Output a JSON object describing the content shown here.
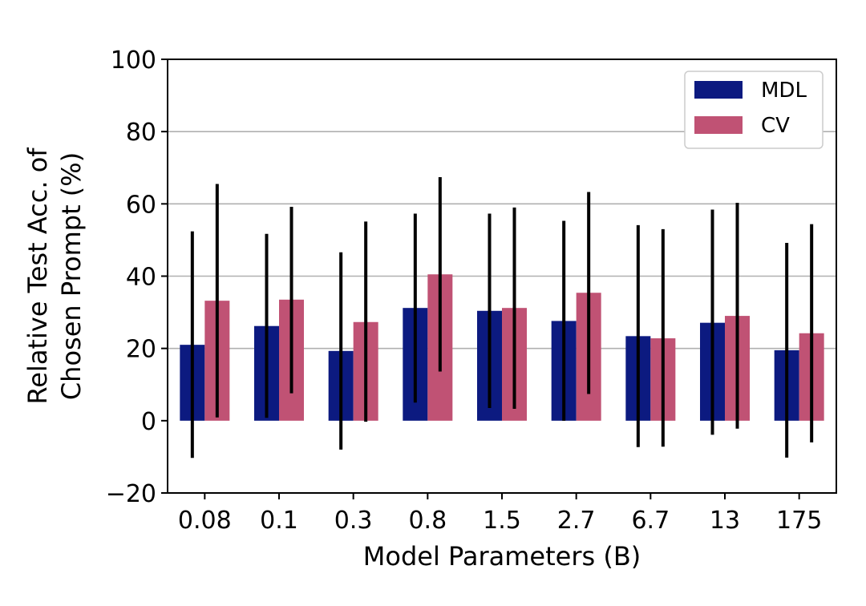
{
  "chart_data": {
    "type": "bar",
    "title": "",
    "xlabel": "Model Parameters (B)",
    "ylabel_lines": [
      "Relative Test Acc. of",
      "Chosen Prompt (%)"
    ],
    "ylim": [
      -20,
      100
    ],
    "yticks": [
      -20,
      0,
      20,
      40,
      60,
      80,
      100
    ],
    "ytick_labels": [
      "−20",
      "0",
      "20",
      "40",
      "60",
      "80",
      "100"
    ],
    "grid_y_values": [
      20,
      40,
      60,
      80
    ],
    "grid": true,
    "categories": [
      "0.08",
      "0.1",
      "0.3",
      "0.8",
      "1.5",
      "2.7",
      "6.7",
      "13",
      "175"
    ],
    "series": [
      {
        "name": "MDL",
        "color": "#0c1a80",
        "values": [
          21.0,
          26.2,
          19.3,
          31.2,
          30.4,
          27.6,
          23.4,
          27.1,
          19.5
        ],
        "err_low": [
          -10.3,
          0.8,
          -8.0,
          5.0,
          3.5,
          0.0,
          -7.3,
          -3.9,
          -10.2
        ],
        "err_high": [
          52.4,
          51.7,
          46.6,
          57.3,
          57.3,
          55.3,
          54.1,
          58.4,
          49.2
        ]
      },
      {
        "name": "CV",
        "color": "#c05274",
        "values": [
          33.2,
          33.5,
          27.3,
          40.5,
          31.2,
          35.4,
          22.8,
          29.0,
          24.2
        ],
        "err_low": [
          0.9,
          7.6,
          -0.3,
          13.6,
          3.3,
          7.4,
          -7.2,
          -2.2,
          -6.0
        ],
        "err_high": [
          65.5,
          59.2,
          55.1,
          67.4,
          59.0,
          63.3,
          53.0,
          60.3,
          54.4
        ]
      }
    ],
    "legend_position": "top-right"
  }
}
